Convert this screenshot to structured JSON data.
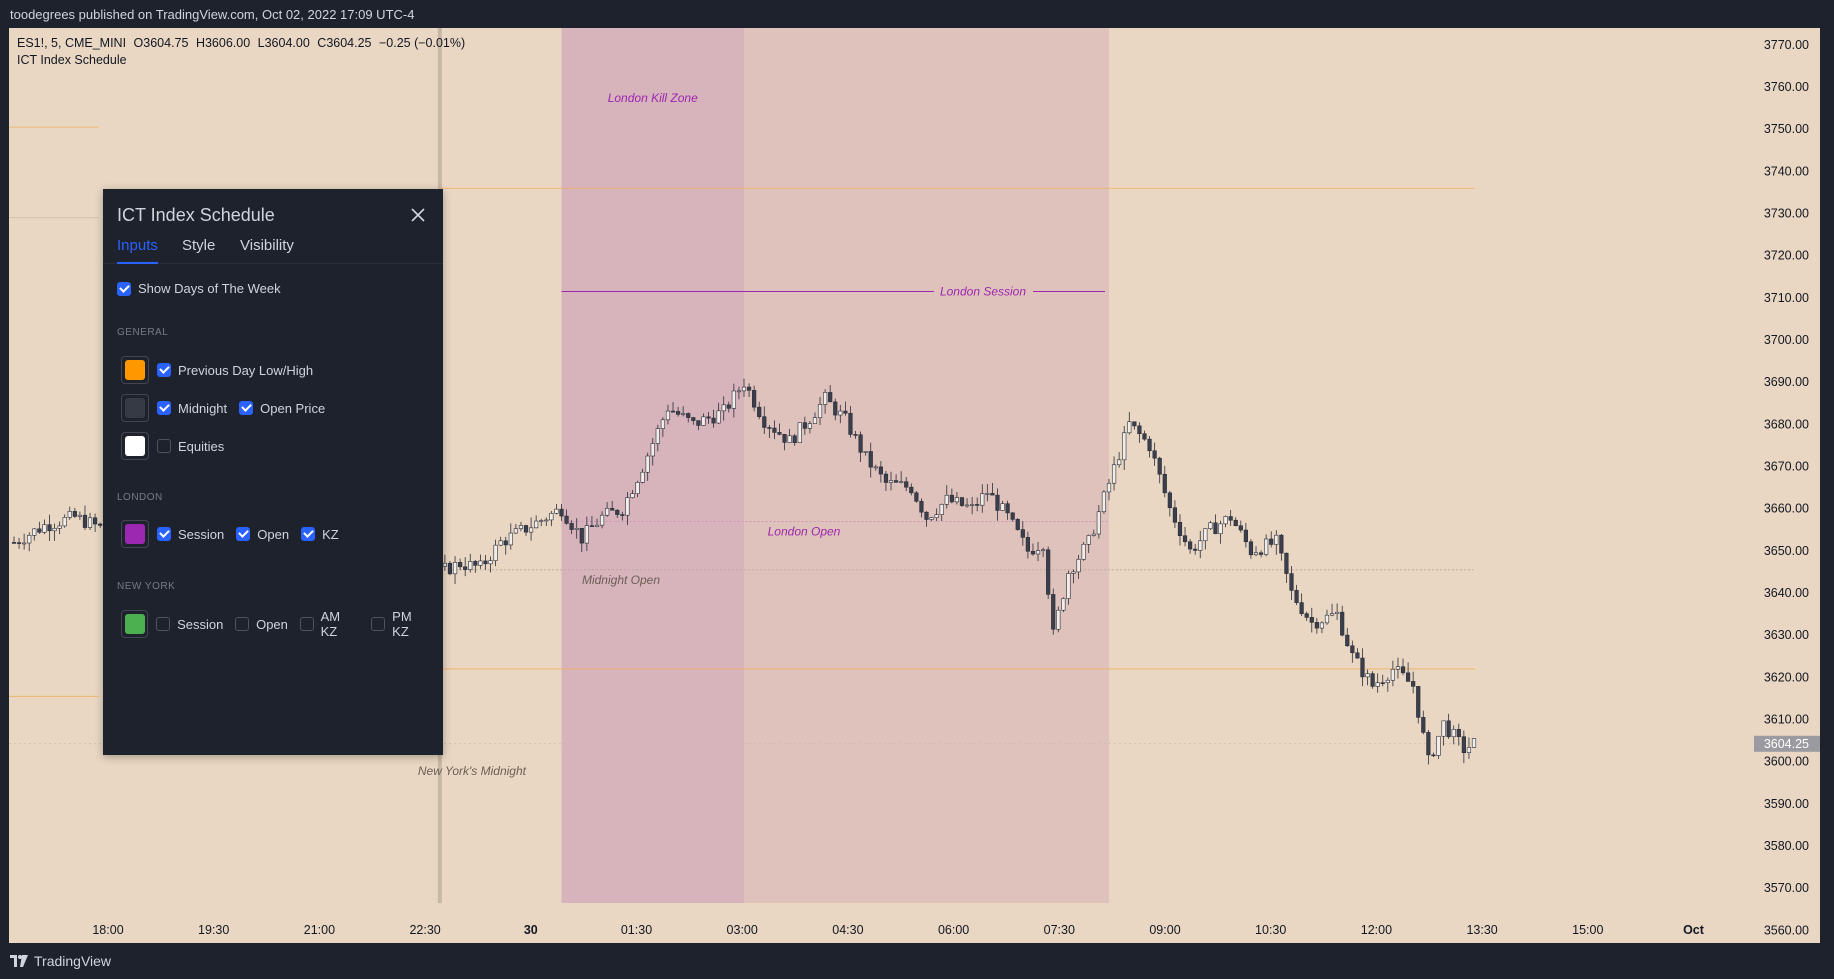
{
  "header": {
    "publish_text": "toodegrees published on TradingView.com, Oct 02, 2022 17:09 UTC-4"
  },
  "footer": {
    "brand": "TradingView"
  },
  "legend": {
    "symbol": "ES1!, 5, CME_MINI",
    "o_label": "O",
    "o": "3604.75",
    "h_label": "H",
    "h": "3606.00",
    "l_label": "L",
    "l": "3604.00",
    "c_label": "C",
    "c": "3604.25",
    "change": "−0.25 (−0.01%)",
    "indicator": "ICT Index Schedule"
  },
  "panel": {
    "title": "ICT Index Schedule",
    "close_icon": "close-icon",
    "tabs": [
      "Inputs",
      "Style",
      "Visibility"
    ],
    "active_tab": "Inputs",
    "show_days": {
      "label": "Show Days of The Week",
      "checked": true
    },
    "general_label": "GENERAL",
    "general": [
      {
        "color": "#ff9800",
        "items": [
          {
            "label": "Previous Day Low/High",
            "checked": true
          }
        ]
      },
      {
        "color": "#363a45",
        "items": [
          {
            "label": "Midnight",
            "checked": true
          },
          {
            "label": "Open Price",
            "checked": true
          }
        ]
      },
      {
        "color": "#ffffff",
        "items": [
          {
            "label": "Equities",
            "checked": false
          }
        ]
      }
    ],
    "london_label": "LONDON",
    "london": {
      "color": "#9c27b0",
      "items": [
        {
          "label": "Session",
          "checked": true
        },
        {
          "label": "Open",
          "checked": true
        },
        {
          "label": "KZ",
          "checked": true
        }
      ]
    },
    "ny_label": "NEW YORK",
    "ny": {
      "color": "#4caf50",
      "items": [
        {
          "label": "Session",
          "checked": false
        },
        {
          "label": "Open",
          "checked": false
        },
        {
          "label": "AM KZ",
          "checked": false
        },
        {
          "label": "PM KZ",
          "checked": false
        }
      ]
    }
  },
  "chart_data": {
    "type": "candlestick",
    "symbol": "ES1!",
    "interval": "5",
    "exchange": "CME_MINI",
    "price_axis_labels": [
      "3770.00",
      "3760.00",
      "3750.00",
      "3740.00",
      "3730.00",
      "3720.00",
      "3710.00",
      "3700.00",
      "3690.00",
      "3680.00",
      "3670.00",
      "3660.00",
      "3650.00",
      "3640.00",
      "3630.00",
      "3620.00",
      "3610.00",
      "3600.00",
      "3590.00",
      "3580.00",
      "3570.00",
      "3560.00"
    ],
    "ylim": [
      3557,
      3774
    ],
    "time_axis_labels": [
      "18:00",
      "19:30",
      "21:00",
      "22:30",
      "30",
      "01:30",
      "03:00",
      "04:30",
      "06:00",
      "07:30",
      "09:00",
      "10:30",
      "12:00",
      "13:30",
      "15:00",
      "Oct"
    ],
    "last_price_label": "3604.25",
    "annotations": [
      "London Kill Zone",
      "London Session",
      "London Open",
      "Midnight Open",
      "New York's Midnight"
    ],
    "levels": {
      "previous_day_high": 3736,
      "previous_day_low": 3622,
      "midnight_open": 3645.5,
      "london_open": 3657,
      "london_session_line": 3711.5,
      "last_price": 3604.25
    },
    "close_path": [
      {
        "t": "17:00",
        "p": 3652
      },
      {
        "t": "17:30",
        "p": 3656
      },
      {
        "t": "18:00",
        "p": 3658
      },
      {
        "t": "18:30",
        "p": 3655
      },
      {
        "t": "19:00",
        "p": 3657
      },
      {
        "t": "19:30",
        "p": 3654
      },
      {
        "t": "20:00",
        "p": 3656
      },
      {
        "t": "20:30",
        "p": 3660
      },
      {
        "t": "21:00",
        "p": 3657
      },
      {
        "t": "21:30",
        "p": 3659
      },
      {
        "t": "22:00",
        "p": 3656
      },
      {
        "t": "22:30",
        "p": 3658
      },
      {
        "t": "23:00",
        "p": 3654
      },
      {
        "t": "23:30",
        "p": 3650
      },
      {
        "t": "00:00",
        "p": 3645
      },
      {
        "t": "00:20",
        "p": 3647
      },
      {
        "t": "00:40",
        "p": 3646
      },
      {
        "t": "01:00",
        "p": 3652
      },
      {
        "t": "01:30",
        "p": 3656
      },
      {
        "t": "02:00",
        "p": 3660
      },
      {
        "t": "02:20",
        "p": 3653
      },
      {
        "t": "02:40",
        "p": 3658
      },
      {
        "t": "03:00",
        "p": 3660
      },
      {
        "t": "03:20",
        "p": 3670
      },
      {
        "t": "03:45",
        "p": 3684
      },
      {
        "t": "04:10",
        "p": 3680
      },
      {
        "t": "04:40",
        "p": 3683
      },
      {
        "t": "05:00",
        "p": 3690
      },
      {
        "t": "05:20",
        "p": 3681
      },
      {
        "t": "05:45",
        "p": 3676
      },
      {
        "t": "06:00",
        "p": 3680
      },
      {
        "t": "06:20",
        "p": 3686
      },
      {
        "t": "06:40",
        "p": 3681
      },
      {
        "t": "07:00",
        "p": 3672
      },
      {
        "t": "07:20",
        "p": 3666
      },
      {
        "t": "07:45",
        "p": 3665
      },
      {
        "t": "08:00",
        "p": 3658
      },
      {
        "t": "08:20",
        "p": 3662
      },
      {
        "t": "08:45",
        "p": 3660
      },
      {
        "t": "09:00",
        "p": 3664
      },
      {
        "t": "09:20",
        "p": 3658
      },
      {
        "t": "09:40",
        "p": 3650
      },
      {
        "t": "09:55",
        "p": 3652
      },
      {
        "t": "10:05",
        "p": 3630
      },
      {
        "t": "10:20",
        "p": 3645
      },
      {
        "t": "10:40",
        "p": 3652
      },
      {
        "t": "11:00",
        "p": 3666
      },
      {
        "t": "11:20",
        "p": 3680
      },
      {
        "t": "11:40",
        "p": 3675
      },
      {
        "t": "12:00",
        "p": 3660
      },
      {
        "t": "12:20",
        "p": 3650
      },
      {
        "t": "12:40",
        "p": 3655
      },
      {
        "t": "13:00",
        "p": 3658
      },
      {
        "t": "13:20",
        "p": 3650
      },
      {
        "t": "13:45",
        "p": 3652
      },
      {
        "t": "14:00",
        "p": 3640
      },
      {
        "t": "14:20",
        "p": 3633
      },
      {
        "t": "14:45",
        "p": 3635
      },
      {
        "t": "15:00",
        "p": 3625
      },
      {
        "t": "15:20",
        "p": 3618
      },
      {
        "t": "15:40",
        "p": 3622
      },
      {
        "t": "16:00",
        "p": 3618
      },
      {
        "t": "16:15",
        "p": 3600
      },
      {
        "t": "16:30",
        "p": 3609
      },
      {
        "t": "16:50",
        "p": 3603
      },
      {
        "t": "17:00",
        "p": 3604.25
      }
    ]
  }
}
